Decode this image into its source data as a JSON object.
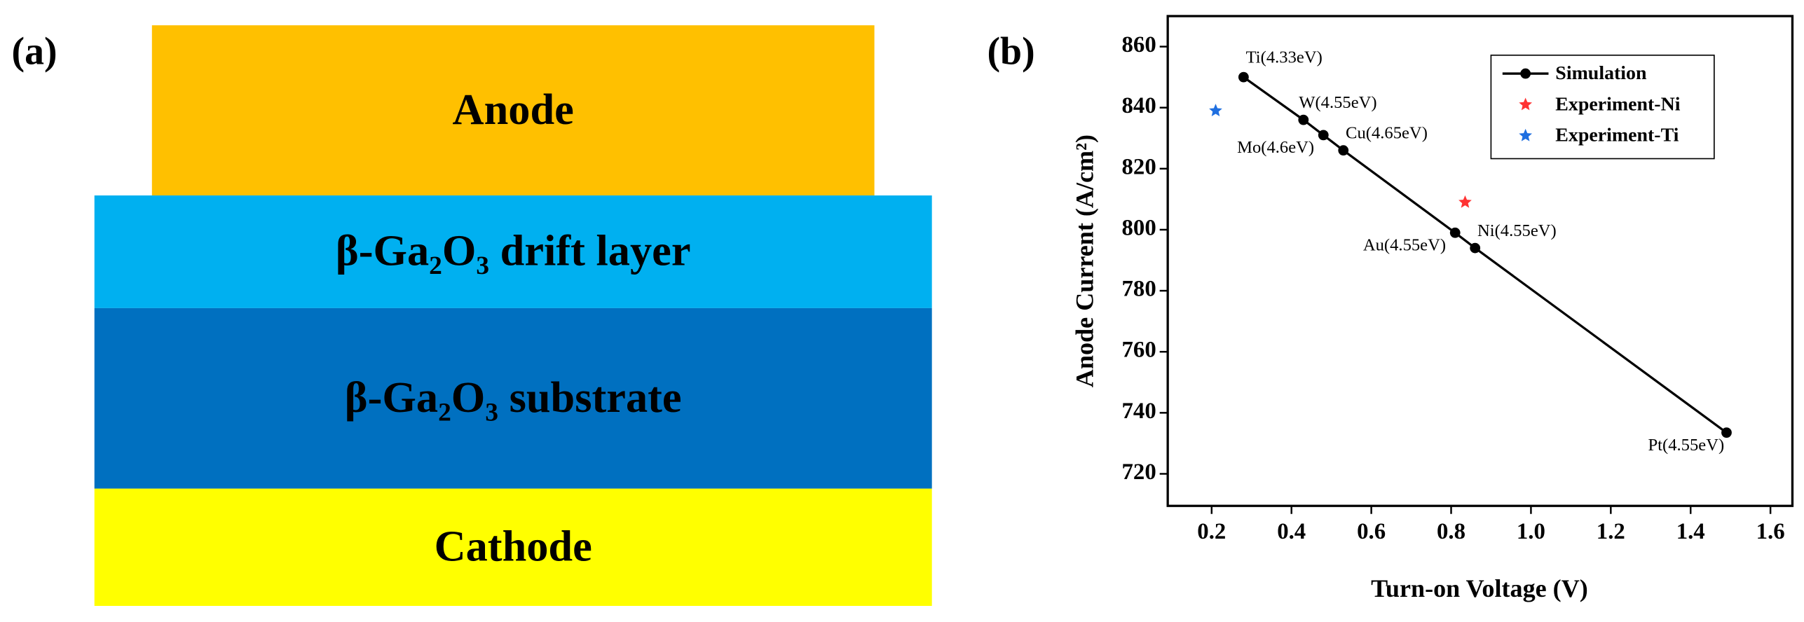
{
  "panels": {
    "a": "(a)",
    "b": "(b)"
  },
  "diagram": {
    "layers": [
      {
        "label": "Anode",
        "color": "#FFC000"
      },
      {
        "label": "β-Ga₂O₃ drift layer",
        "color": "#00B0F0"
      },
      {
        "label": "β-Ga₂O₃ substrate",
        "color": "#0070C0"
      },
      {
        "label": "Cathode",
        "color": "#FFFF00"
      }
    ]
  },
  "chart_data": {
    "type": "scatter",
    "x_label": "Turn-on Voltage (V)",
    "y_label": "Anode Current (A/cm²)",
    "xlim": [
      0.09,
      1.655
    ],
    "ylim": [
      709.5,
      870
    ],
    "xticks": [
      0.2,
      0.4,
      0.6,
      0.8,
      {
        "value": 1,
        "label": "1.0"
      },
      1.2,
      1.4,
      1.6
    ],
    "yticks": [
      720,
      740,
      760,
      780,
      800,
      820,
      840,
      860
    ],
    "legend": "upper right",
    "series": [
      {
        "name": "Simulation",
        "color": "#000000",
        "marker": "circle",
        "line": true,
        "x": [
          0.28,
          0.43,
          0.48,
          0.53,
          0.81,
          0.86,
          1.49
        ],
        "y": [
          850,
          836,
          831,
          826,
          799,
          794,
          733.5
        ],
        "labels": [
          "Ti(4.33eV)",
          "W(4.55eV)",
          "Mo(4.6eV)",
          "Cu(4.65eV)",
          "Au(4.55eV)",
          "Ni(4.55eV)",
          "Pt(4.55eV)"
        ]
      },
      {
        "name": "Experiment-Ni",
        "color": "#FF3333",
        "marker": "star",
        "line": false,
        "x": [
          0.835
        ],
        "y": [
          809
        ]
      },
      {
        "name": "Experiment-Ti",
        "color": "#1F6FE0",
        "marker": "star",
        "line": false,
        "x": [
          0.21
        ],
        "y": [
          839
        ]
      }
    ]
  }
}
